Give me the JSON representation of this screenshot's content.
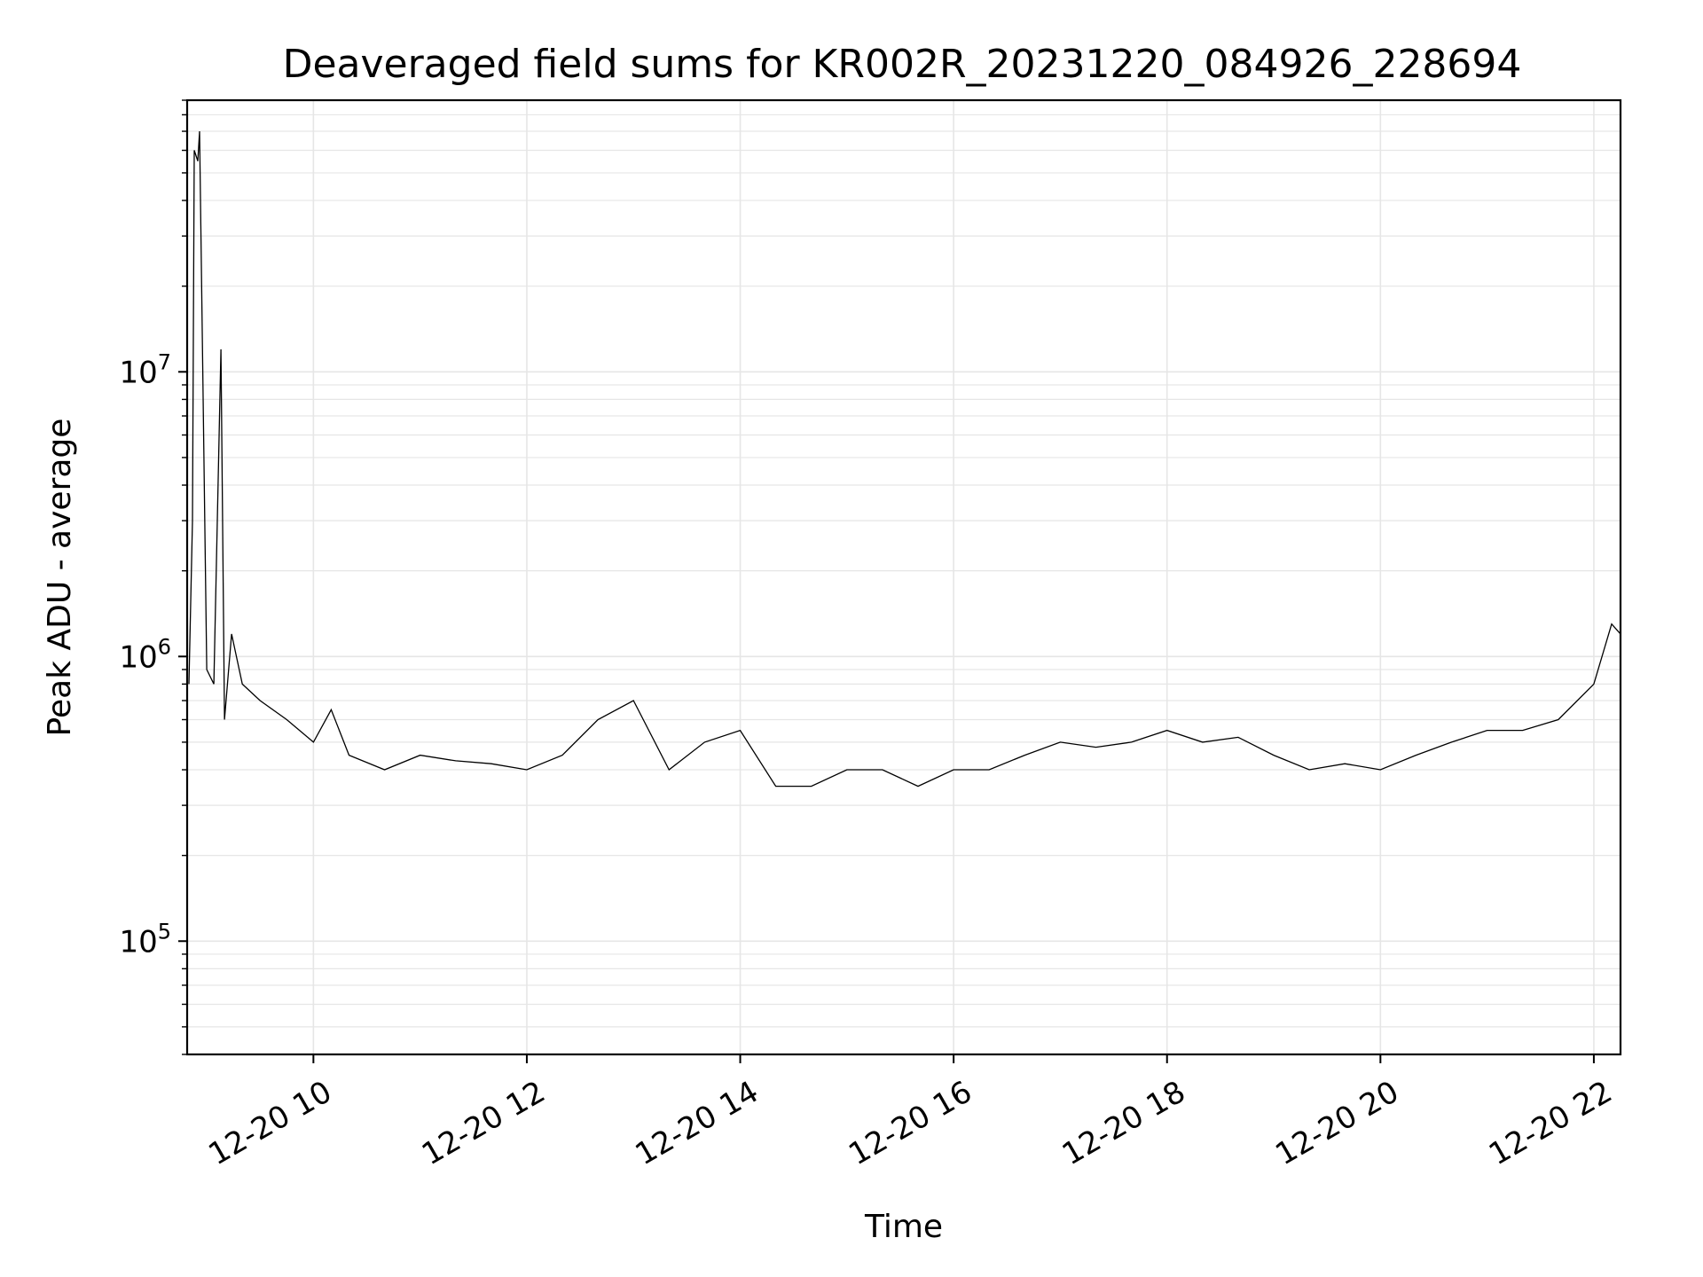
{
  "chart_data": {
    "type": "line",
    "title": "Deaveraged field sums for KR002R_20231220_084926_228694",
    "xlabel": "Time",
    "ylabel": "Peak ADU - average",
    "yscale": "log",
    "ylim": [
      40000,
      90000000
    ],
    "xlim": [
      "2023-12-20T08:49",
      "2023-12-20T22:15"
    ],
    "grid": true,
    "grid_color": "#e6e6e6",
    "line_color": "#000000",
    "x_ticks": [
      {
        "t": "2023-12-20T10:00",
        "label": "12-20 10"
      },
      {
        "t": "2023-12-20T12:00",
        "label": "12-20 12"
      },
      {
        "t": "2023-12-20T14:00",
        "label": "12-20 14"
      },
      {
        "t": "2023-12-20T16:00",
        "label": "12-20 16"
      },
      {
        "t": "2023-12-20T18:00",
        "label": "12-20 18"
      },
      {
        "t": "2023-12-20T20:00",
        "label": "12-20 20"
      },
      {
        "t": "2023-12-20T22:00",
        "label": "12-20 22"
      }
    ],
    "y_ticks": [
      {
        "value": 100000,
        "base": "10",
        "exp": "5"
      },
      {
        "value": 1000000,
        "base": "10",
        "exp": "6"
      },
      {
        "value": 10000000,
        "base": "10",
        "exp": "7"
      }
    ],
    "series": [
      {
        "x": [
          "2023-12-20T08:50",
          "2023-12-20T08:52",
          "2023-12-20T08:53",
          "2023-12-20T08:55",
          "2023-12-20T08:56",
          "2023-12-20T09:00",
          "2023-12-20T09:04",
          "2023-12-20T09:08",
          "2023-12-20T09:10",
          "2023-12-20T09:14",
          "2023-12-20T09:20",
          "2023-12-20T09:30",
          "2023-12-20T09:45",
          "2023-12-20T10:00",
          "2023-12-20T10:10",
          "2023-12-20T10:20",
          "2023-12-20T10:40",
          "2023-12-20T11:00",
          "2023-12-20T11:20",
          "2023-12-20T11:40",
          "2023-12-20T12:00",
          "2023-12-20T12:20",
          "2023-12-20T12:40",
          "2023-12-20T13:00",
          "2023-12-20T13:20",
          "2023-12-20T13:40",
          "2023-12-20T14:00",
          "2023-12-20T14:20",
          "2023-12-20T14:40",
          "2023-12-20T15:00",
          "2023-12-20T15:20",
          "2023-12-20T15:40",
          "2023-12-20T16:00",
          "2023-12-20T16:20",
          "2023-12-20T16:40",
          "2023-12-20T17:00",
          "2023-12-20T17:20",
          "2023-12-20T17:40",
          "2023-12-20T18:00",
          "2023-12-20T18:20",
          "2023-12-20T18:40",
          "2023-12-20T19:00",
          "2023-12-20T19:20",
          "2023-12-20T19:40",
          "2023-12-20T20:00",
          "2023-12-20T20:20",
          "2023-12-20T20:40",
          "2023-12-20T21:00",
          "2023-12-20T21:20",
          "2023-12-20T21:40",
          "2023-12-20T22:00",
          "2023-12-20T22:10",
          "2023-12-20T22:15"
        ],
        "y": [
          800000,
          3000000,
          60000000,
          55000000,
          70000000,
          900000,
          800000,
          12000000,
          600000,
          1200000,
          800000,
          700000,
          600000,
          500000,
          650000,
          450000,
          400000,
          450000,
          430000,
          420000,
          400000,
          450000,
          600000,
          700000,
          400000,
          500000,
          550000,
          350000,
          350000,
          400000,
          400000,
          350000,
          400000,
          400000,
          450000,
          500000,
          480000,
          500000,
          550000,
          500000,
          520000,
          450000,
          400000,
          420000,
          400000,
          450000,
          500000,
          550000,
          550000,
          600000,
          800000,
          1300000,
          1200000
        ]
      }
    ]
  }
}
